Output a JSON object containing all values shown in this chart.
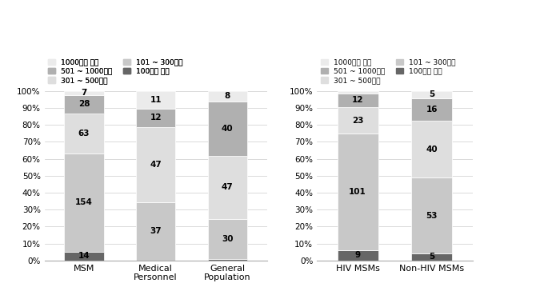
{
  "groups1": [
    "MSM",
    "Medical\nPersonnel",
    "General\nPopulation"
  ],
  "groups2": [
    "HIV MSMs",
    "Non-HIV MSMs"
  ],
  "legend_labels": [
    "1000만원 이상",
    "501 ~ 1000만원",
    "301 ~ 500만원",
    "101 ~ 300만원",
    "100만원 이만"
  ],
  "values1": [
    [
      14,
      154,
      63,
      28,
      7
    ],
    [
      0,
      37,
      47,
      12,
      11
    ],
    [
      1,
      30,
      47,
      40,
      8
    ]
  ],
  "values2": [
    [
      9,
      101,
      23,
      12,
      2
    ],
    [
      5,
      53,
      40,
      16,
      5
    ]
  ],
  "colors": [
    "#666666",
    "#c8c8c8",
    "#dedede",
    "#b0b0b0",
    "#ebebeb"
  ],
  "bar_width": 0.55
}
